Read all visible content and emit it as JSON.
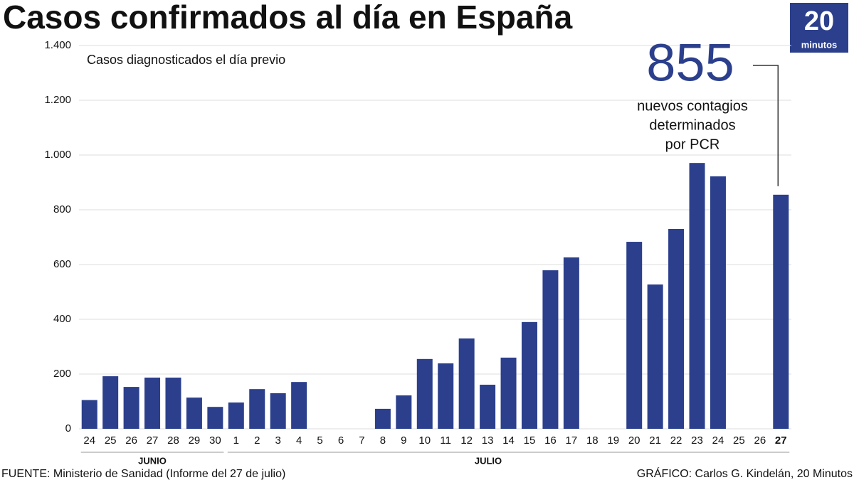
{
  "chart_data": {
    "type": "bar",
    "title": "Casos confirmados al día en España",
    "subtitle": "Casos diagnosticados el día previo",
    "categories": [
      "24",
      "25",
      "26",
      "27",
      "28",
      "29",
      "30",
      "1",
      "2",
      "3",
      "4",
      "5",
      "6",
      "7",
      "8",
      "9",
      "10",
      "11",
      "12",
      "13",
      "14",
      "15",
      "16",
      "17",
      "18",
      "19",
      "20",
      "21",
      "22",
      "23",
      "24",
      "25",
      "26",
      "27"
    ],
    "values": [
      105,
      192,
      153,
      187,
      187,
      114,
      80,
      96,
      145,
      130,
      171,
      null,
      null,
      null,
      73,
      122,
      255,
      239,
      330,
      161,
      260,
      390,
      579,
      626,
      null,
      null,
      683,
      527,
      730,
      971,
      922,
      null,
      null,
      855
    ],
    "color": "#2b3f8c",
    "groups": [
      "JUNIO",
      "JULIO"
    ],
    "ylim": [
      0,
      1400
    ],
    "yticks": [
      0,
      200,
      400,
      600,
      800,
      {
        "value": 1000,
        "label": "1.000"
      },
      {
        "value": 1200,
        "label": "1.200"
      },
      {
        "value": 1400,
        "label": "1.400"
      }
    ],
    "grid": true,
    "annotation": [
      "nuevos contagios",
      "determinados",
      "por PCR"
    ],
    "source": "FUENTE: Ministerio de Sanidad (Informe del 27 de julio)",
    "credit": "GRÁFICO: Carlos G. Kindelán, 20 Minutos",
    "logo": {
      "number": "20",
      "text": "minutos"
    }
  }
}
